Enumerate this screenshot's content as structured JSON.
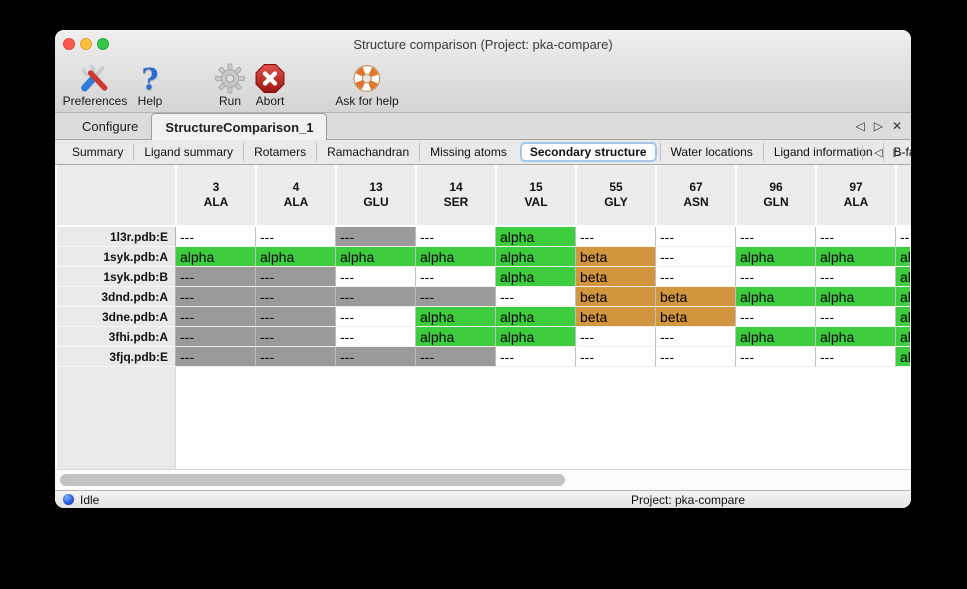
{
  "window": {
    "title": "Structure comparison (Project: pka-compare)"
  },
  "toolbar": {
    "items": [
      {
        "label": "Preferences",
        "icon": "tools"
      },
      {
        "label": "Help",
        "icon": "question-mark"
      },
      {
        "label": "Run",
        "icon": "gear"
      },
      {
        "label": "Abort",
        "icon": "stop-octagon"
      },
      {
        "label": "Ask for help",
        "icon": "lifebuoy"
      }
    ]
  },
  "tabs": {
    "items": [
      {
        "label": "Configure",
        "selected": false
      },
      {
        "label": "StructureComparison_1",
        "selected": true
      }
    ],
    "controls": [
      {
        "name": "previous",
        "glyph": "◁"
      },
      {
        "name": "next",
        "glyph": "▷"
      },
      {
        "name": "close",
        "glyph": "✕"
      }
    ]
  },
  "subtabs": {
    "items": [
      {
        "label": "Summary",
        "selected": false
      },
      {
        "label": "Ligand summary",
        "selected": false
      },
      {
        "label": "Rotamers",
        "selected": false
      },
      {
        "label": "Ramachandran",
        "selected": false
      },
      {
        "label": "Missing atoms",
        "selected": false
      },
      {
        "label": "Secondary structure",
        "selected": true
      },
      {
        "label": "Water locations",
        "selected": false
      },
      {
        "label": "Ligand information",
        "selected": false
      },
      {
        "label": "B-factors",
        "selected": false
      }
    ],
    "controls": [
      {
        "name": "previous",
        "glyph": "◁"
      },
      {
        "name": "next",
        "glyph": "▷"
      }
    ]
  },
  "colors": {
    "alpha": "#3dcd3f",
    "beta": "#d2963f",
    "missing": "#9a9a9a",
    "blank": "#ffffff"
  },
  "table": {
    "columns": [
      {
        "num": "3",
        "res": "ALA"
      },
      {
        "num": "4",
        "res": "ALA"
      },
      {
        "num": "13",
        "res": "GLU"
      },
      {
        "num": "14",
        "res": "SER"
      },
      {
        "num": "15",
        "res": "VAL"
      },
      {
        "num": "55",
        "res": "GLY"
      },
      {
        "num": "67",
        "res": "ASN"
      },
      {
        "num": "96",
        "res": "GLN"
      },
      {
        "num": "97",
        "res": "ALA"
      },
      {
        "num": "",
        "res": "",
        "partial": true
      }
    ],
    "rows": [
      {
        "label": "1l3r.pdb:E",
        "cells": [
          {
            "text": "---",
            "state": "blank"
          },
          {
            "text": "---",
            "state": "blank"
          },
          {
            "text": "---",
            "state": "missing"
          },
          {
            "text": "---",
            "state": "blank"
          },
          {
            "text": "alpha",
            "state": "alpha"
          },
          {
            "text": "---",
            "state": "blank"
          },
          {
            "text": "---",
            "state": "blank"
          },
          {
            "text": "---",
            "state": "blank"
          },
          {
            "text": "---",
            "state": "blank"
          },
          {
            "text": "---",
            "state": "blank"
          }
        ]
      },
      {
        "label": "1syk.pdb:A",
        "cells": [
          {
            "text": "alpha",
            "state": "alpha"
          },
          {
            "text": "alpha",
            "state": "alpha"
          },
          {
            "text": "alpha",
            "state": "alpha"
          },
          {
            "text": "alpha",
            "state": "alpha"
          },
          {
            "text": "alpha",
            "state": "alpha"
          },
          {
            "text": "beta",
            "state": "beta"
          },
          {
            "text": "---",
            "state": "blank"
          },
          {
            "text": "alpha",
            "state": "alpha"
          },
          {
            "text": "alpha",
            "state": "alpha"
          },
          {
            "text": "alpha",
            "state": "alpha"
          }
        ]
      },
      {
        "label": "1syk.pdb:B",
        "cells": [
          {
            "text": "---",
            "state": "missing"
          },
          {
            "text": "---",
            "state": "missing"
          },
          {
            "text": "---",
            "state": "blank"
          },
          {
            "text": "---",
            "state": "blank"
          },
          {
            "text": "alpha",
            "state": "alpha"
          },
          {
            "text": "beta",
            "state": "beta"
          },
          {
            "text": "---",
            "state": "blank"
          },
          {
            "text": "---",
            "state": "blank"
          },
          {
            "text": "---",
            "state": "blank"
          },
          {
            "text": "alpha",
            "state": "alpha"
          }
        ]
      },
      {
        "label": "3dnd.pdb:A",
        "cells": [
          {
            "text": "---",
            "state": "missing"
          },
          {
            "text": "---",
            "state": "missing"
          },
          {
            "text": "---",
            "state": "missing"
          },
          {
            "text": "---",
            "state": "missing"
          },
          {
            "text": "---",
            "state": "blank"
          },
          {
            "text": "beta",
            "state": "beta"
          },
          {
            "text": "beta",
            "state": "beta"
          },
          {
            "text": "alpha",
            "state": "alpha"
          },
          {
            "text": "alpha",
            "state": "alpha"
          },
          {
            "text": "alpha",
            "state": "alpha"
          }
        ]
      },
      {
        "label": "3dne.pdb:A",
        "cells": [
          {
            "text": "---",
            "state": "missing"
          },
          {
            "text": "---",
            "state": "missing"
          },
          {
            "text": "---",
            "state": "blank"
          },
          {
            "text": "alpha",
            "state": "alpha"
          },
          {
            "text": "alpha",
            "state": "alpha"
          },
          {
            "text": "beta",
            "state": "beta"
          },
          {
            "text": "beta",
            "state": "beta"
          },
          {
            "text": "---",
            "state": "blank"
          },
          {
            "text": "---",
            "state": "blank"
          },
          {
            "text": "alpha",
            "state": "alpha"
          }
        ]
      },
      {
        "label": "3fhi.pdb:A",
        "cells": [
          {
            "text": "---",
            "state": "missing"
          },
          {
            "text": "---",
            "state": "missing"
          },
          {
            "text": "---",
            "state": "blank"
          },
          {
            "text": "alpha",
            "state": "alpha"
          },
          {
            "text": "alpha",
            "state": "alpha"
          },
          {
            "text": "---",
            "state": "blank"
          },
          {
            "text": "---",
            "state": "blank"
          },
          {
            "text": "alpha",
            "state": "alpha"
          },
          {
            "text": "alpha",
            "state": "alpha"
          },
          {
            "text": "alpha",
            "state": "alpha"
          }
        ]
      },
      {
        "label": "3fjq.pdb:E",
        "cells": [
          {
            "text": "---",
            "state": "missing"
          },
          {
            "text": "---",
            "state": "missing"
          },
          {
            "text": "---",
            "state": "missing"
          },
          {
            "text": "---",
            "state": "missing"
          },
          {
            "text": "---",
            "state": "blank"
          },
          {
            "text": "---",
            "state": "blank"
          },
          {
            "text": "---",
            "state": "blank"
          },
          {
            "text": "---",
            "state": "blank"
          },
          {
            "text": "---",
            "state": "blank"
          },
          {
            "text": "alpha",
            "state": "alpha"
          }
        ]
      }
    ]
  },
  "statusbar": {
    "status": "Idle",
    "project": "Project: pka-compare"
  }
}
